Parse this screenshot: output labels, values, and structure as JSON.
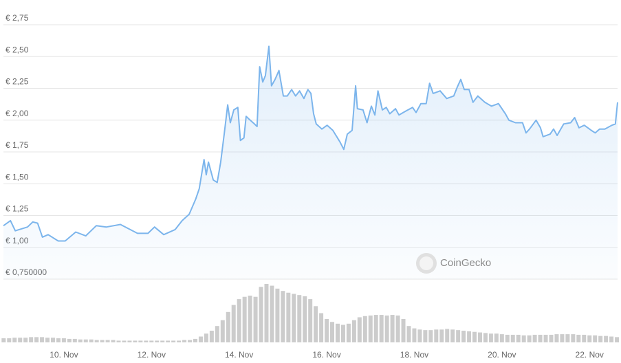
{
  "chart_data": [
    {
      "type": "area",
      "color": "#7cb5ec",
      "watermark": "CoinGecko",
      "grid": true,
      "xlim": [
        8.62,
        22.64
      ],
      "xticks": [
        {
          "value": 10,
          "label": "10. Nov"
        },
        {
          "value": 12,
          "label": "12. Nov"
        },
        {
          "value": 14,
          "label": "14. Nov"
        },
        {
          "value": 16,
          "label": "16. Nov"
        },
        {
          "value": 18,
          "label": "18. Nov"
        },
        {
          "value": 20,
          "label": "20. Nov"
        },
        {
          "value": 22,
          "label": "22. Nov"
        }
      ],
      "ylim": [
        0.75,
        2.75
      ],
      "yticks": [
        {
          "value": 0.75,
          "label": "€ 0,750000"
        },
        {
          "value": 1.0,
          "label": "€ 1,00"
        },
        {
          "value": 1.25,
          "label": "€ 1,25"
        },
        {
          "value": 1.5,
          "label": "€ 1,50"
        },
        {
          "value": 1.75,
          "label": "€ 1,75"
        },
        {
          "value": 2.0,
          "label": "€ 2,00"
        },
        {
          "value": 2.25,
          "label": "€ 2,25"
        },
        {
          "value": 2.5,
          "label": "€ 2,50"
        },
        {
          "value": 2.75,
          "label": "€ 2,75"
        }
      ],
      "x": [
        8.62,
        8.78,
        8.89,
        9.17,
        9.29,
        9.4,
        9.51,
        9.64,
        9.87,
        10.03,
        10.27,
        10.5,
        10.74,
        10.97,
        11.29,
        11.68,
        11.92,
        12.07,
        12.28,
        12.54,
        12.7,
        12.86,
        13.01,
        13.09,
        13.2,
        13.25,
        13.3,
        13.41,
        13.5,
        13.58,
        13.66,
        13.74,
        13.8,
        13.88,
        13.97,
        14.03,
        14.11,
        14.16,
        14.22,
        14.35,
        14.41,
        14.47,
        14.54,
        14.6,
        14.68,
        14.74,
        14.82,
        14.91,
        15.01,
        15.1,
        15.2,
        15.29,
        15.38,
        15.48,
        15.57,
        15.64,
        15.7,
        15.76,
        15.89,
        16.01,
        16.14,
        16.3,
        16.39,
        16.47,
        16.58,
        16.66,
        16.7,
        16.83,
        16.92,
        17.02,
        17.1,
        17.17,
        17.27,
        17.36,
        17.44,
        17.57,
        17.65,
        17.8,
        17.96,
        18.04,
        18.15,
        18.27,
        18.35,
        18.43,
        18.59,
        18.74,
        18.9,
        18.98,
        19.06,
        19.14,
        19.25,
        19.34,
        19.45,
        19.61,
        19.76,
        19.92,
        20.08,
        20.16,
        20.31,
        20.47,
        20.55,
        20.63,
        20.78,
        20.88,
        20.94,
        21.1,
        21.18,
        21.26,
        21.41,
        21.57,
        21.66,
        21.76,
        21.88,
        22.04,
        22.13,
        22.23,
        22.35,
        22.51,
        22.59,
        22.64
      ],
      "values": [
        1.17,
        1.21,
        1.13,
        1.16,
        1.2,
        1.19,
        1.08,
        1.1,
        1.05,
        1.05,
        1.12,
        1.09,
        1.17,
        1.16,
        1.18,
        1.11,
        1.11,
        1.16,
        1.1,
        1.14,
        1.21,
        1.26,
        1.38,
        1.46,
        1.69,
        1.57,
        1.67,
        1.53,
        1.51,
        1.67,
        1.89,
        2.12,
        1.98,
        2.08,
        2.1,
        1.84,
        1.86,
        2.03,
        2.01,
        1.97,
        1.95,
        2.42,
        2.3,
        2.35,
        2.58,
        2.27,
        2.32,
        2.39,
        2.19,
        2.19,
        2.24,
        2.19,
        2.23,
        2.17,
        2.24,
        2.21,
        2.05,
        1.97,
        1.93,
        1.96,
        1.92,
        1.83,
        1.77,
        1.89,
        1.92,
        2.27,
        2.09,
        2.08,
        1.98,
        2.11,
        2.04,
        2.23,
        2.08,
        2.1,
        2.05,
        2.09,
        2.04,
        2.07,
        2.1,
        2.06,
        2.13,
        2.13,
        2.29,
        2.21,
        2.23,
        2.17,
        2.19,
        2.26,
        2.32,
        2.24,
        2.24,
        2.14,
        2.19,
        2.14,
        2.11,
        2.13,
        2.05,
        2.0,
        1.98,
        1.98,
        1.9,
        1.93,
        2.0,
        1.94,
        1.87,
        1.89,
        1.93,
        1.88,
        1.97,
        1.98,
        2.02,
        1.94,
        1.96,
        1.92,
        1.9,
        1.93,
        1.93,
        1.96,
        1.97,
        2.14
      ]
    },
    {
      "type": "bar",
      "color": "#cccccc",
      "xlim": [
        8.62,
        22.64
      ],
      "ylim": [
        0,
        100
      ],
      "x": [
        8.625,
        8.75,
        8.875,
        9.0,
        9.125,
        9.25,
        9.375,
        9.5,
        9.625,
        9.75,
        9.875,
        10.0,
        10.125,
        10.25,
        10.375,
        10.5,
        10.625,
        10.75,
        10.875,
        11.0,
        11.125,
        11.25,
        11.375,
        11.5,
        11.625,
        11.75,
        11.875,
        12.0,
        12.125,
        12.25,
        12.375,
        12.5,
        12.625,
        12.75,
        12.875,
        13.0,
        13.125,
        13.25,
        13.375,
        13.5,
        13.625,
        13.75,
        13.875,
        14.0,
        14.125,
        14.25,
        14.375,
        14.5,
        14.625,
        14.75,
        14.875,
        15.0,
        15.125,
        15.25,
        15.375,
        15.5,
        15.625,
        15.75,
        15.875,
        16.0,
        16.125,
        16.25,
        16.375,
        16.5,
        16.625,
        16.75,
        16.875,
        17.0,
        17.125,
        17.25,
        17.375,
        17.5,
        17.625,
        17.75,
        17.875,
        18.0,
        18.125,
        18.25,
        18.375,
        18.5,
        18.625,
        18.75,
        18.875,
        19.0,
        19.125,
        19.25,
        19.375,
        19.5,
        19.625,
        19.75,
        19.875,
        20.0,
        20.125,
        20.25,
        20.375,
        20.5,
        20.625,
        20.75,
        20.875,
        21.0,
        21.125,
        21.25,
        21.375,
        21.5,
        21.625,
        21.75,
        21.875,
        22.0,
        22.125,
        22.25,
        22.375,
        22.5,
        22.625
      ],
      "values": [
        7,
        7,
        8,
        8,
        8,
        9,
        9,
        9,
        8,
        8,
        7,
        7,
        6,
        6,
        5,
        5,
        5,
        4,
        4,
        4,
        4,
        3,
        3,
        3,
        3,
        3,
        3,
        3,
        3,
        3,
        3,
        3,
        3,
        4,
        4,
        6,
        10,
        15,
        20,
        28,
        38,
        52,
        64,
        74,
        78,
        80,
        78,
        95,
        100,
        97,
        92,
        88,
        85,
        83,
        81,
        79,
        74,
        62,
        50,
        40,
        35,
        32,
        30,
        32,
        38,
        43,
        45,
        46,
        47,
        47,
        46,
        47,
        46,
        40,
        28,
        24,
        22,
        21,
        21,
        22,
        22,
        23,
        22,
        21,
        20,
        19,
        18,
        17,
        16,
        15,
        15,
        14,
        13,
        13,
        13,
        12,
        12,
        13,
        13,
        13,
        13,
        14,
        14,
        14,
        14,
        13,
        13,
        12,
        12,
        11,
        11,
        10,
        9
      ]
    }
  ]
}
